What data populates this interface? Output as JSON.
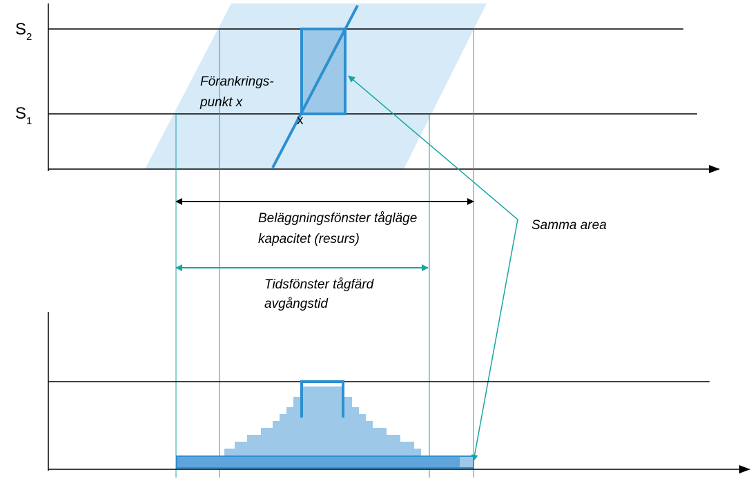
{
  "labels": {
    "s2": {
      "base": "S",
      "sub": "2"
    },
    "s1": {
      "base": "S",
      "sub": "1"
    },
    "anchor_line1": "Förankrings-",
    "anchor_line2": "punkt x",
    "anchor_mark": "x",
    "occupancy_line1": "Beläggningsfönster tågläge",
    "occupancy_line2": "kapacitet (resurs)",
    "time_line1": "Tidsfönster tågfärd",
    "time_line2": "avgångstid",
    "same_area": "Samma area"
  }
}
